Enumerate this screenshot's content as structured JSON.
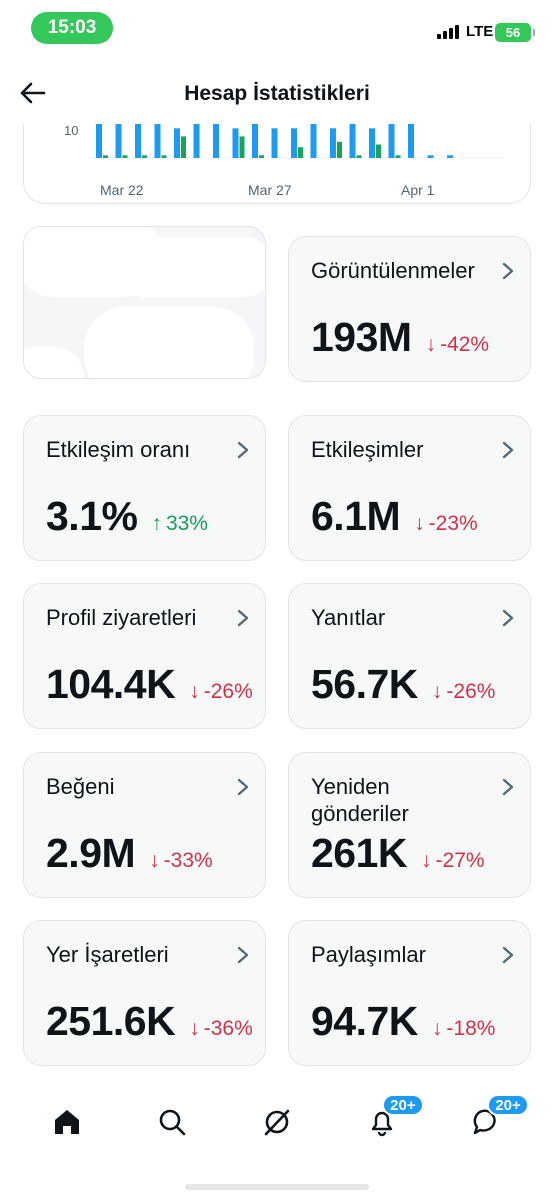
{
  "status_bar": {
    "time": "15:03",
    "network": "LTE",
    "battery": "56"
  },
  "header": {
    "title": "Hesap İstatistikleri"
  },
  "chart_data": {
    "type": "bar",
    "x_ticks": [
      "Mar 22",
      "Mar 27",
      "Apr 1"
    ],
    "y_tick": "10",
    "series": [
      {
        "color": "#1d9bf0",
        "values": [
          14,
          14,
          14,
          14,
          11,
          14,
          14,
          11,
          14,
          11,
          11,
          14,
          11,
          14,
          11,
          14,
          14,
          1,
          1
        ]
      },
      {
        "color": "#1aa35c",
        "values": [
          1,
          1,
          1,
          1,
          8,
          0,
          0,
          8,
          1,
          0,
          4,
          0,
          6,
          1,
          5,
          1,
          0,
          0,
          0
        ]
      }
    ]
  },
  "cards": [
    {
      "title": "Görüntülenmeler",
      "value": "193M",
      "delta": "-42%",
      "dir": "down"
    },
    {
      "title": "Etkileşim oranı",
      "value": "3.1%",
      "delta": "33%",
      "dir": "up"
    },
    {
      "title": "Etkileşimler",
      "value": "6.1M",
      "delta": "-23%",
      "dir": "down"
    },
    {
      "title": "Profil ziyaretleri",
      "value": "104.4K",
      "delta": "-26%",
      "dir": "down"
    },
    {
      "title": "Yanıtlar",
      "value": "56.7K",
      "delta": "-26%",
      "dir": "down"
    },
    {
      "title": "Beğeni",
      "value": "2.9M",
      "delta": "-33%",
      "dir": "down"
    },
    {
      "title": "Yeniden gönderiler",
      "value": "261K",
      "delta": "-27%",
      "dir": "down"
    },
    {
      "title": "Yer İşaretleri",
      "value": "251.6K",
      "delta": "-36%",
      "dir": "down"
    },
    {
      "title": "Paylaşımlar",
      "value": "94.7K",
      "delta": "-18%",
      "dir": "down"
    }
  ],
  "nav": {
    "notifications_badge": "20+",
    "messages_badge": "20+"
  },
  "colors": {
    "accent": "#1d9bf0",
    "positive": "#1a9a5e",
    "negative": "#d0314a"
  }
}
